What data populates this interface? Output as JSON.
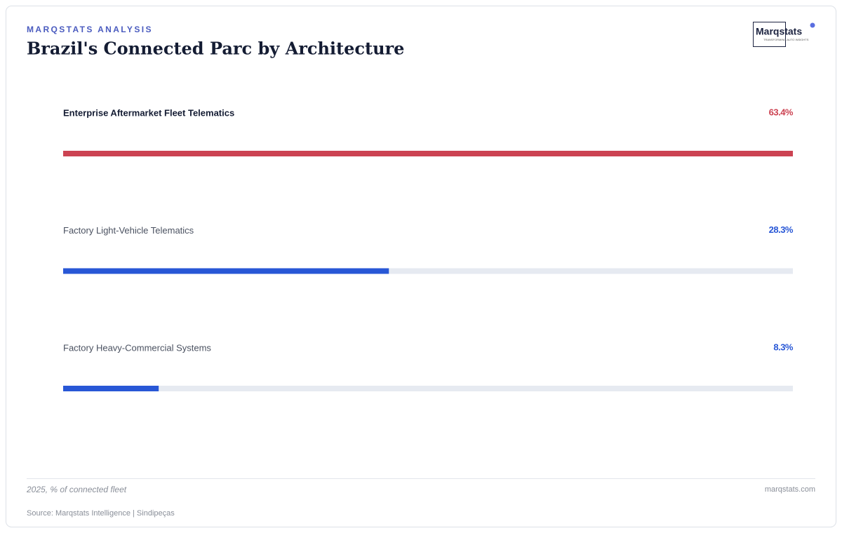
{
  "eyebrow": "MARQSTATS ANALYSIS",
  "logo": {
    "name": "Marqstats",
    "tagline": "TRANSFORMING AUTO INSIGHTS"
  },
  "chart_data": {
    "type": "bar",
    "orientation": "horizontal",
    "title": "Brazil's Connected Parc by Architecture",
    "categories": [
      "Enterprise Aftermarket Fleet Telematics",
      "Factory Light-Vehicle Telematics",
      "Factory Heavy-Commercial Systems"
    ],
    "values": [
      63.4,
      28.3,
      8.3
    ],
    "value_labels": [
      "63.4%",
      "28.3%",
      "8.3%"
    ],
    "colors": [
      "#cc4352",
      "#2857d6",
      "#2857d6"
    ]
  },
  "footer": {
    "note": "2025, % of connected fleet",
    "site": "marqstats.com",
    "source": "Source: Marqstats Intelligence | Sindipeças"
  }
}
